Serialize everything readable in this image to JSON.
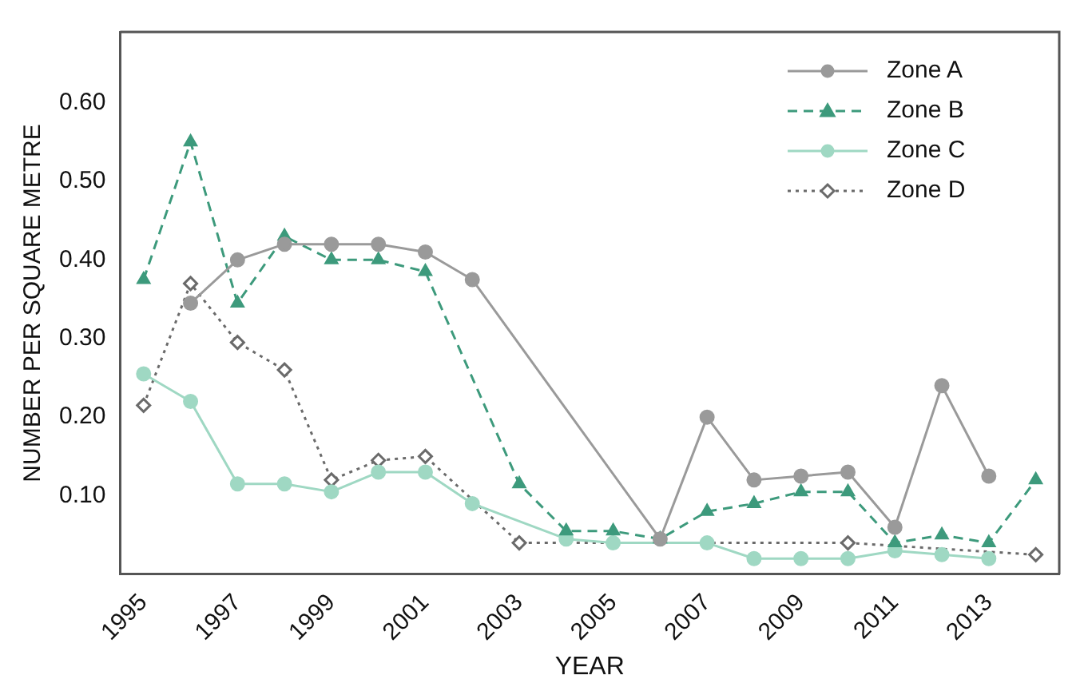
{
  "chart_data": {
    "type": "line",
    "xlabel": "YEAR",
    "ylabel": "NUMBER PER SQUARE METRE",
    "categories": [
      "1995",
      null,
      "1997",
      null,
      "1999",
      null,
      "2001",
      null,
      "2003",
      null,
      "2005",
      null,
      "2007",
      null,
      "2009",
      null,
      "2011",
      null,
      "2013",
      null
    ],
    "ylim": [
      0,
      0.69
    ],
    "yticks": [
      {
        "value": 0.1,
        "label": "0.10"
      },
      {
        "value": 0.2,
        "label": "0.20"
      },
      {
        "value": 0.3,
        "label": "0.30"
      },
      {
        "value": 0.4,
        "label": "0.40"
      },
      {
        "value": 0.5,
        "label": "0.50"
      },
      {
        "value": 0.6,
        "label": "0.60"
      }
    ],
    "grid": false,
    "legend": "top right",
    "series": [
      {
        "name": "Zone A",
        "color": "#9a9a9a",
        "marker": "circle",
        "line_style": "solid",
        "values": [
          null,
          0.345,
          0.4,
          0.42,
          0.42,
          0.42,
          0.41,
          0.375,
          null,
          null,
          null,
          0.045,
          0.2,
          0.12,
          0.125,
          0.13,
          0.06,
          0.24,
          0.125,
          null
        ]
      },
      {
        "name": "Zone B",
        "color": "#3d9a7c",
        "marker": "triangle",
        "line_style": "dashed",
        "values": [
          0.375,
          0.55,
          0.345,
          0.43,
          0.4,
          0.4,
          0.385,
          null,
          0.115,
          0.055,
          0.055,
          0.045,
          0.08,
          0.09,
          0.105,
          0.105,
          0.04,
          0.05,
          0.04,
          0.12
        ]
      },
      {
        "name": "Zone C",
        "color": "#9fd8c3",
        "marker": "circle",
        "line_style": "solid",
        "values": [
          0.255,
          0.22,
          0.115,
          0.115,
          0.105,
          0.13,
          0.13,
          0.09,
          null,
          0.045,
          0.04,
          null,
          0.04,
          0.02,
          0.02,
          0.02,
          0.03,
          0.025,
          0.02,
          null
        ]
      },
      {
        "name": "Zone D",
        "color": "#6a6a6a",
        "marker": "diamond",
        "line_style": "dotted",
        "values": [
          0.215,
          0.37,
          0.295,
          0.26,
          0.12,
          0.145,
          0.15,
          null,
          0.04,
          null,
          null,
          null,
          null,
          null,
          null,
          0.04,
          null,
          null,
          null,
          0.025
        ]
      }
    ]
  }
}
